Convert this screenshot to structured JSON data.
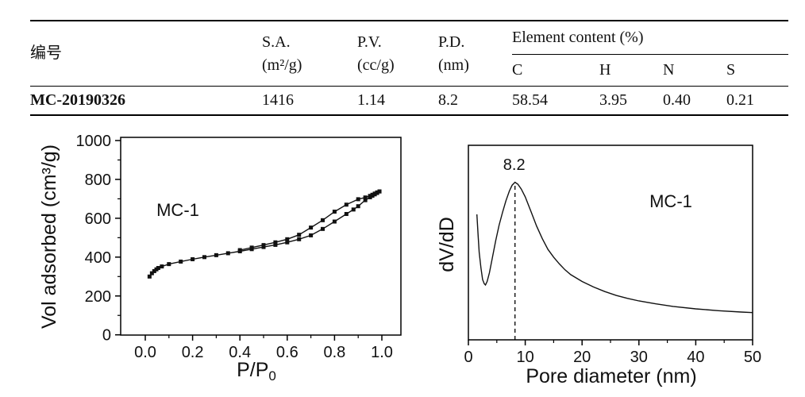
{
  "table": {
    "id_header": "编号",
    "columns": [
      {
        "line1": "S.A.",
        "line2": "(m²/g)"
      },
      {
        "line1": "P.V.",
        "line2": "(cc/g)"
      },
      {
        "line1": "P.D.",
        "line2": "(nm)"
      }
    ],
    "element_group_header": "Element content (%)",
    "element_columns": [
      "C",
      "H",
      "N",
      "S"
    ],
    "row": {
      "id": "MC-20190326",
      "sa": "1416",
      "pv": "1.14",
      "pd": "8.2",
      "c": "58.54",
      "h": "3.95",
      "n": "0.40",
      "s": "0.21"
    }
  },
  "chart_data": [
    {
      "type": "scatter",
      "name": "nitrogen-adsorption-isotherm",
      "xlabel": {
        "main": "P/P",
        "sub": "0"
      },
      "ylabel": "Vol adsorbed (cm³/g)",
      "annotation": "MC-1",
      "xlim": [
        -0.1,
        1.1
      ],
      "ylim": [
        0,
        1020
      ],
      "xticks": [
        0.0,
        0.2,
        0.4,
        0.6,
        0.8,
        1.0
      ],
      "yticks": [
        0,
        200,
        400,
        600,
        800,
        1000
      ],
      "x_minor_ticks": [
        0.1,
        0.3,
        0.5,
        0.7,
        0.9
      ],
      "y_minor_ticks": [
        100,
        300,
        500,
        700,
        900
      ],
      "grid": false,
      "line_color": "#111111",
      "marker": "square",
      "series": [
        {
          "name": "adsorption",
          "points": [
            [
              0.018,
              300
            ],
            [
              0.028,
              317
            ],
            [
              0.038,
              328
            ],
            [
              0.047,
              337
            ],
            [
              0.055,
              344
            ],
            [
              0.07,
              352
            ],
            [
              0.1,
              364
            ],
            [
              0.15,
              377
            ],
            [
              0.2,
              389
            ],
            [
              0.25,
              400
            ],
            [
              0.3,
              410
            ],
            [
              0.35,
              420
            ],
            [
              0.4,
              430
            ],
            [
              0.45,
              441
            ],
            [
              0.5,
              452
            ],
            [
              0.55,
              463
            ],
            [
              0.6,
              476
            ],
            [
              0.65,
              492
            ],
            [
              0.7,
              512
            ],
            [
              0.75,
              545
            ],
            [
              0.8,
              583
            ],
            [
              0.85,
              622
            ],
            [
              0.88,
              645
            ],
            [
              0.9,
              662
            ],
            [
              0.93,
              693
            ],
            [
              0.95,
              708
            ],
            [
              0.96,
              716
            ],
            [
              0.97,
              723
            ],
            [
              0.98,
              730
            ],
            [
              0.99,
              738
            ]
          ]
        },
        {
          "name": "desorption",
          "points": [
            [
              0.4,
              436
            ],
            [
              0.45,
              449
            ],
            [
              0.5,
              462
            ],
            [
              0.55,
              476
            ],
            [
              0.6,
              492
            ],
            [
              0.65,
              515
            ],
            [
              0.7,
              552
            ],
            [
              0.75,
              590
            ],
            [
              0.8,
              634
            ],
            [
              0.85,
              670
            ],
            [
              0.9,
              698
            ],
            [
              0.93,
              707
            ],
            [
              0.95,
              715
            ],
            [
              0.96,
              721
            ],
            [
              0.97,
              727
            ],
            [
              0.98,
              733
            ],
            [
              0.99,
              738
            ]
          ]
        }
      ]
    },
    {
      "type": "line",
      "name": "pore-size-distribution",
      "xlabel": {
        "main": "Pore diameter (nm)",
        "sub": ""
      },
      "ylabel": "dV/dD",
      "annotation": "MC-1",
      "peak_label": "8.2",
      "peak_x": 8.2,
      "peak_y": 0.81,
      "xlim": [
        0,
        50
      ],
      "ylim": [
        0,
        1
      ],
      "xticks": [
        0,
        10,
        20,
        30,
        40,
        50
      ],
      "x_minor_ticks": [
        5,
        15,
        25,
        35,
        45
      ],
      "grid": false,
      "line_color": "#111111",
      "points": [
        [
          1.5,
          0.645
        ],
        [
          1.7,
          0.54
        ],
        [
          1.9,
          0.45
        ],
        [
          2.2,
          0.37
        ],
        [
          2.5,
          0.31
        ],
        [
          2.8,
          0.288
        ],
        [
          3.0,
          0.282
        ],
        [
          3.3,
          0.3
        ],
        [
          3.7,
          0.345
        ],
        [
          4.2,
          0.42
        ],
        [
          4.8,
          0.51
        ],
        [
          5.4,
          0.59
        ],
        [
          6.0,
          0.655
        ],
        [
          6.6,
          0.715
        ],
        [
          7.2,
          0.765
        ],
        [
          7.7,
          0.795
        ],
        [
          8.2,
          0.81
        ],
        [
          8.7,
          0.8
        ],
        [
          9.3,
          0.775
        ],
        [
          10,
          0.735
        ],
        [
          11,
          0.66
        ],
        [
          12,
          0.585
        ],
        [
          13,
          0.52
        ],
        [
          14,
          0.465
        ],
        [
          15,
          0.425
        ],
        [
          16,
          0.39
        ],
        [
          17,
          0.36
        ],
        [
          18,
          0.335
        ],
        [
          20,
          0.3
        ],
        [
          22,
          0.272
        ],
        [
          24,
          0.248
        ],
        [
          26,
          0.228
        ],
        [
          28,
          0.213
        ],
        [
          30,
          0.2
        ],
        [
          33,
          0.185
        ],
        [
          36,
          0.172
        ],
        [
          40,
          0.159
        ],
        [
          44,
          0.15
        ],
        [
          48,
          0.143
        ],
        [
          50,
          0.14
        ]
      ]
    }
  ]
}
